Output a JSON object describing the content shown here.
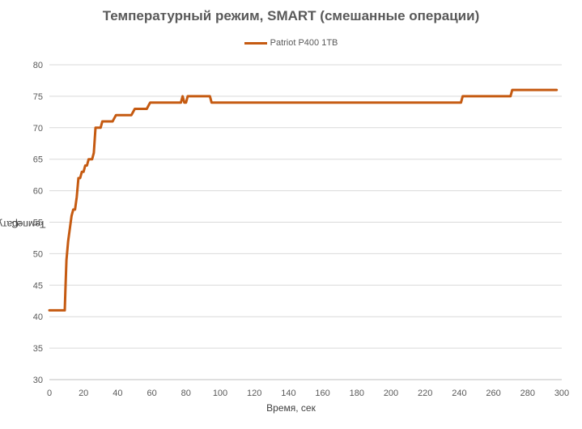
{
  "chart_data": {
    "type": "line",
    "title": "Температурный режим, SMART (смешанные операции)",
    "xlabel": "Время, сек",
    "ylabel_main": "Температура, ",
    "ylabel_super": "o",
    "ylabel_tail": "C",
    "xlim": [
      0,
      300
    ],
    "ylim": [
      30,
      80
    ],
    "xticks": [
      0,
      20,
      40,
      60,
      80,
      100,
      120,
      140,
      160,
      180,
      200,
      220,
      240,
      260,
      280,
      300
    ],
    "yticks": [
      30,
      35,
      40,
      45,
      50,
      55,
      60,
      65,
      70,
      75,
      80
    ],
    "grid": true,
    "legend_position": "top",
    "series": [
      {
        "name": "Patriot P400 1TB",
        "color": "#C55A11",
        "x": [
          0,
          9,
          9.5,
          10,
          11,
          12,
          13,
          14,
          15,
          16,
          17,
          18,
          19,
          20,
          21,
          22,
          23,
          24,
          25,
          26,
          27,
          28,
          30,
          31,
          32,
          37,
          38,
          39,
          48,
          49,
          50,
          57,
          58,
          59,
          77,
          78,
          79,
          80,
          81,
          94,
          95,
          241,
          242,
          270,
          271,
          297
        ],
        "y": [
          41,
          41,
          45,
          49,
          52,
          54,
          56,
          57,
          57,
          59,
          62,
          62,
          63,
          63,
          64,
          64,
          65,
          65,
          65,
          66,
          70,
          70,
          70,
          71,
          71,
          71,
          71.5,
          72,
          72,
          72.5,
          73,
          73,
          73.5,
          74,
          74,
          75,
          74,
          74,
          75,
          75,
          74,
          74,
          75,
          75,
          76,
          76
        ]
      }
    ]
  }
}
